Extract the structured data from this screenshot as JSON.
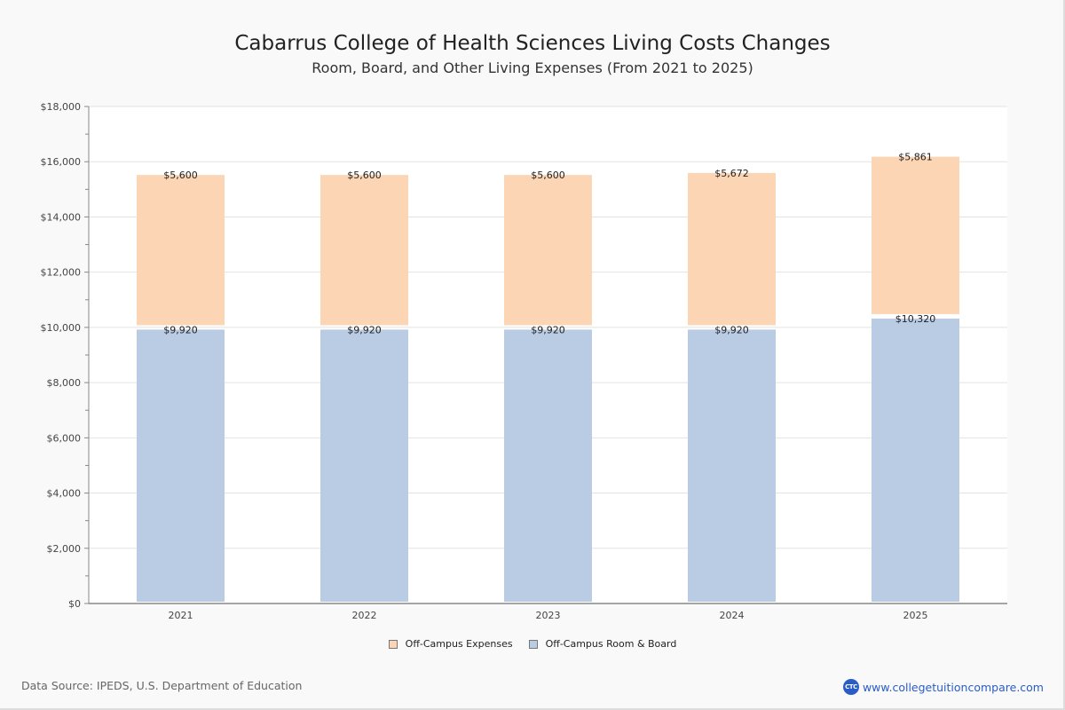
{
  "header": {
    "title": "Cabarrus College of Health Sciences Living Costs Changes",
    "subtitle": "Room, Board, and Other Living Expenses (From 2021 to 2025)"
  },
  "footer": {
    "source": "Data Source: IPEDS, U.S. Department of Education",
    "brand_logo": "CTC",
    "brand_url": "www.collegetuitioncompare.com"
  },
  "colors": {
    "expenses": "#fcd5b4",
    "room_board": "#b9cce4",
    "grid": "#e3e3e3",
    "axis": "#888888"
  },
  "chart_data": {
    "type": "bar",
    "stacked": true,
    "title": "Cabarrus College of Health Sciences Living Costs Changes",
    "subtitle": "Room, Board, and Other Living Expenses (From 2021 to 2025)",
    "xlabel": "",
    "ylabel": "",
    "ylim": [
      0,
      18000
    ],
    "yticks": [
      0,
      2000,
      4000,
      6000,
      8000,
      10000,
      12000,
      14000,
      16000,
      18000
    ],
    "ytick_labels": [
      "$0",
      "$2,000",
      "$4,000",
      "$6,000",
      "$8,000",
      "$10,000",
      "$12,000",
      "$14,000",
      "$16,000",
      "$18,000"
    ],
    "grid": true,
    "legend_position": "bottom",
    "categories": [
      "2021",
      "2022",
      "2023",
      "2024",
      "2025"
    ],
    "series": [
      {
        "name": "Off-Campus Room & Board",
        "key": "room_board",
        "values": [
          9920,
          9920,
          9920,
          9920,
          10320
        ],
        "labels": [
          "$9,920",
          "$9,920",
          "$9,920",
          "$9,920",
          "$10,320"
        ]
      },
      {
        "name": "Off-Campus Expenses",
        "key": "expenses",
        "values": [
          5600,
          5600,
          5600,
          5672,
          5861
        ],
        "labels": [
          "$5,600",
          "$5,600",
          "$5,600",
          "$5,672",
          "$5,861"
        ]
      }
    ],
    "legend": [
      "Off-Campus Expenses",
      "Off-Campus Room & Board"
    ]
  }
}
